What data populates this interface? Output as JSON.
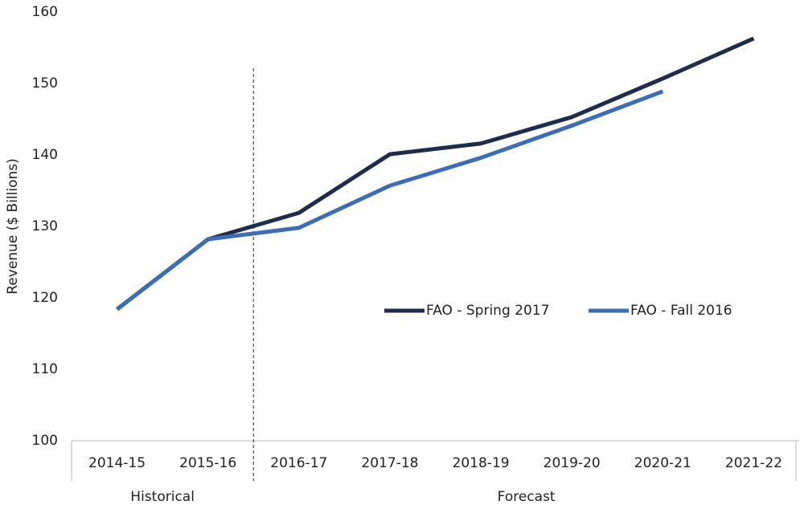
{
  "chart_data": {
    "type": "line",
    "y_label": "Revenue ($ Billions)",
    "categories": [
      "2014-15",
      "2015-16",
      "2016-17",
      "2017-18",
      "2018-19",
      "2019-20",
      "2020-21",
      "2021-22"
    ],
    "groups": [
      {
        "name": "Historical",
        "categories": 2
      },
      {
        "name": "Forecast",
        "categories": 6
      }
    ],
    "series": [
      {
        "name": "FAO - Spring 2017",
        "color": "#1f2d4a",
        "values": [
          118.4,
          128.2,
          131.9,
          140.1,
          141.6,
          145.3,
          150.7,
          156.3
        ]
      },
      {
        "name": "FAO - Fall 2016",
        "color": "#3d6db5",
        "values": [
          118.4,
          128.2,
          129.8,
          135.7,
          139.6,
          144.1,
          148.9,
          null
        ]
      }
    ],
    "ylim": [
      100,
      160
    ],
    "yticks": [
      100,
      110,
      120,
      130,
      140,
      150,
      160
    ],
    "grid": false
  }
}
